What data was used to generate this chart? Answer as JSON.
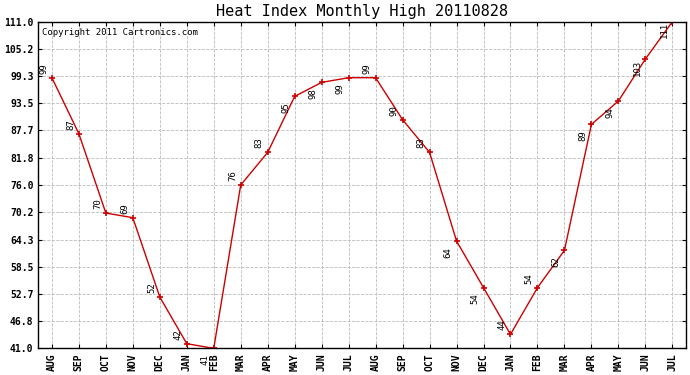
{
  "title": "Heat Index Monthly High 20110828",
  "copyright": "Copyright 2011 Cartronics.com",
  "months": [
    "AUG",
    "SEP",
    "OCT",
    "NOV",
    "DEC",
    "JAN",
    "FEB",
    "MAR",
    "APR",
    "MAY",
    "JUN",
    "JUL",
    "AUG",
    "SEP",
    "OCT",
    "NOV",
    "DEC",
    "JAN",
    "FEB",
    "MAR",
    "APR",
    "MAY",
    "JUN",
    "JUL"
  ],
  "values": [
    99,
    87,
    70,
    69,
    52,
    42,
    41,
    76,
    83,
    95,
    98,
    99,
    99,
    90,
    83,
    64,
    54,
    44,
    54,
    62,
    89,
    94,
    103,
    111
  ],
  "line_color": "#cc0000",
  "bg_color": "#ffffff",
  "grid_color": "#bbbbbb",
  "yticks": [
    41.0,
    46.8,
    52.7,
    58.5,
    64.3,
    70.2,
    76.0,
    81.8,
    87.7,
    93.5,
    99.3,
    105.2,
    111.0
  ],
  "ylim": [
    41.0,
    111.0
  ],
  "title_fontsize": 11,
  "label_fontsize": 7,
  "annotation_fontsize": 6.5,
  "copyright_fontsize": 6.5
}
